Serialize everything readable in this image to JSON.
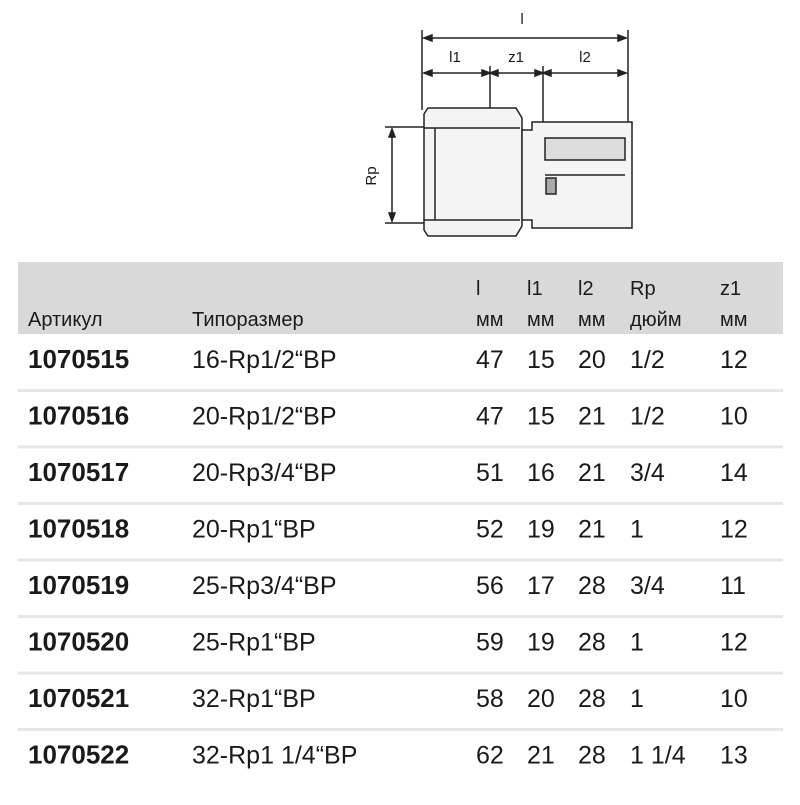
{
  "drawing": {
    "labels": {
      "l": "l",
      "l1": "l1",
      "z1": "z1",
      "l2": "l2",
      "rp": "Rp"
    }
  },
  "table": {
    "header": [
      [
        "Артикул"
      ],
      [
        "Типоразмер"
      ],
      [
        "l",
        "мм"
      ],
      [
        "l1",
        "мм"
      ],
      [
        "l2",
        "мм"
      ],
      [
        "Rp",
        "дюйм"
      ],
      [
        "z1",
        "мм"
      ]
    ],
    "rows": [
      [
        "1070515",
        "16-Rp1/2“BP",
        47,
        15,
        20,
        "1/2",
        12
      ],
      [
        "1070516",
        "20-Rp1/2“BP",
        47,
        15,
        21,
        "1/2",
        10
      ],
      [
        "1070517",
        "20-Rp3/4“BP",
        51,
        16,
        21,
        "3/4",
        14
      ],
      [
        "1070518",
        "20-Rp1“BP",
        52,
        19,
        21,
        "1",
        12
      ],
      [
        "1070519",
        "25-Rp3/4“BP",
        56,
        17,
        28,
        "3/4",
        11
      ],
      [
        "1070520",
        "25-Rp1“BP",
        59,
        19,
        28,
        "1",
        12
      ],
      [
        "1070521",
        "32-Rp1“BP",
        58,
        20,
        28,
        "1",
        10
      ],
      [
        "1070522",
        "32-Rp1 1/4“BP",
        62,
        21,
        28,
        "1 1/4",
        13
      ]
    ]
  }
}
